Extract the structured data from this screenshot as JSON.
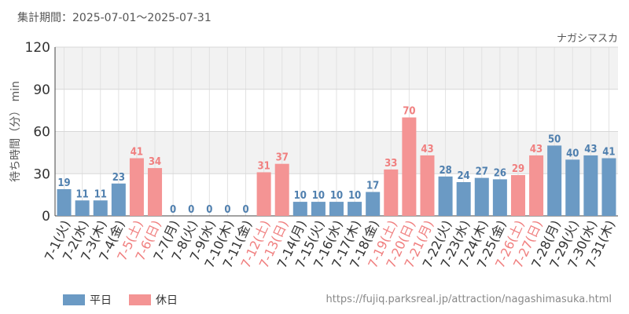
{
  "header": {
    "period": "集計期間：2025-07-01～2025-07-31",
    "attraction": "ナガシマスカ"
  },
  "legend": {
    "weekday": "平日",
    "holiday": "休日"
  },
  "colors": {
    "weekday": "#6b9ac4",
    "holiday": "#f49494",
    "weekday_label": "#4f7fae",
    "holiday_label": "#f07f7f",
    "axis_text": "#333333",
    "band": "#f2f2f2",
    "grid": "#e2e2e2"
  },
  "source_url": "https://fujiq.parksreal.jp/attraction/nagashimasuka.html",
  "chart_data": {
    "type": "bar",
    "title": "",
    "xlabel": "",
    "ylabel": "待ち時間（分） min",
    "ylim": [
      0,
      120
    ],
    "yticks": [
      0,
      30,
      60,
      90,
      120
    ],
    "grid": true,
    "legend_position": "bottom-left",
    "categories": [
      "7-1(火)",
      "7-2(水)",
      "7-3(木)",
      "7-4(金)",
      "7-5(土)",
      "7-6(日)",
      "7-7(月)",
      "7-8(火)",
      "7-9(水)",
      "7-10(木)",
      "7-11(金)",
      "7-12(土)",
      "7-13(日)",
      "7-14(月)",
      "7-15(火)",
      "7-16(水)",
      "7-17(木)",
      "7-18(金)",
      "7-19(土)",
      "7-20(日)",
      "7-21(月)",
      "7-22(火)",
      "7-23(水)",
      "7-24(木)",
      "7-25(金)",
      "7-26(土)",
      "7-27(日)",
      "7-28(月)",
      "7-29(火)",
      "7-30(水)",
      "7-31(木)"
    ],
    "values": [
      19,
      11,
      11,
      23,
      41,
      34,
      0,
      0,
      0,
      0,
      0,
      31,
      37,
      10,
      10,
      10,
      10,
      17,
      33,
      70,
      43,
      28,
      24,
      27,
      26,
      29,
      43,
      50,
      40,
      43,
      41
    ],
    "day_type": [
      "平日",
      "平日",
      "平日",
      "平日",
      "休日",
      "休日",
      "平日",
      "平日",
      "平日",
      "平日",
      "平日",
      "休日",
      "休日",
      "平日",
      "平日",
      "平日",
      "平日",
      "平日",
      "休日",
      "休日",
      "休日",
      "平日",
      "平日",
      "平日",
      "平日",
      "休日",
      "休日",
      "平日",
      "平日",
      "平日",
      "平日"
    ]
  }
}
